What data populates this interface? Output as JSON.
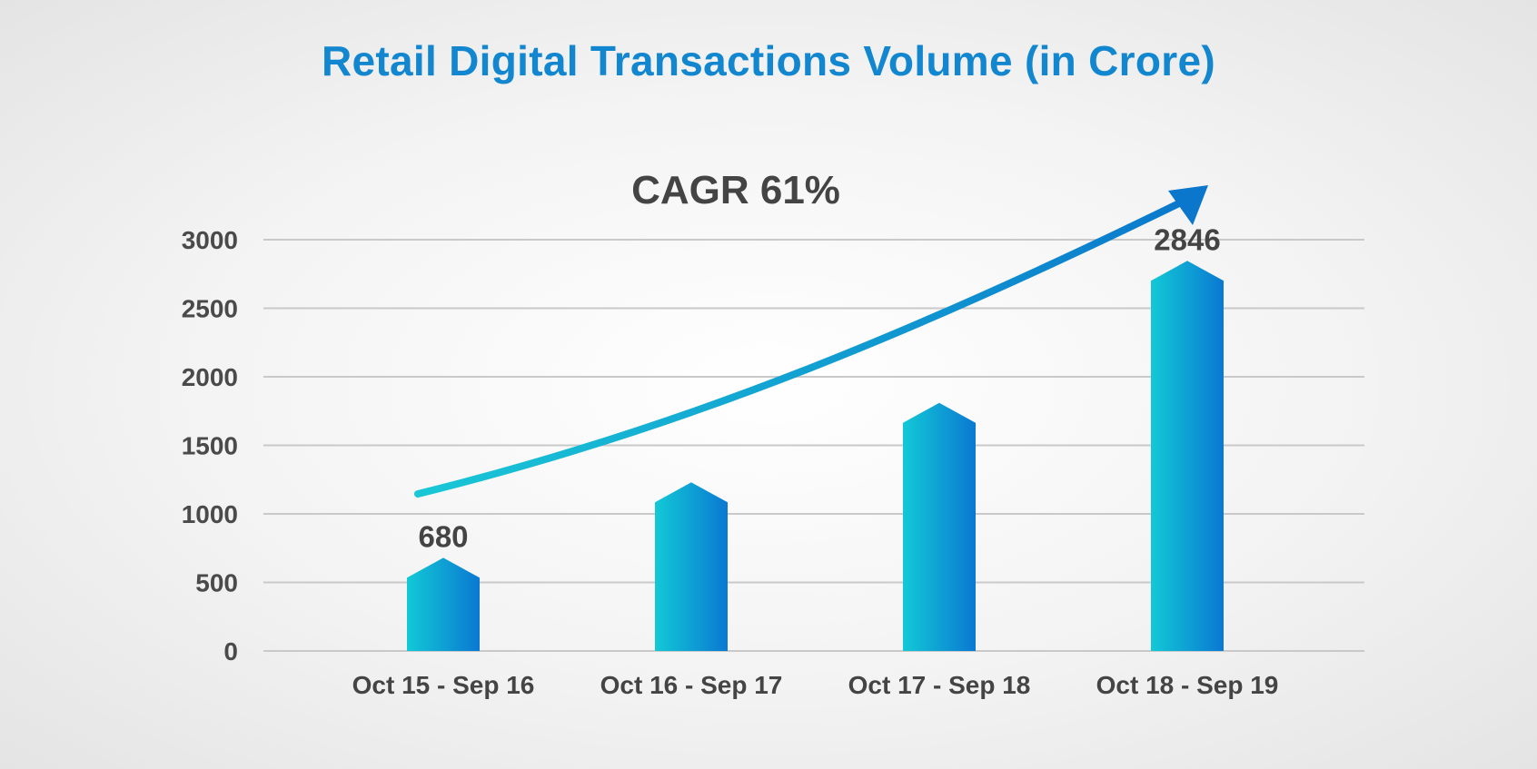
{
  "chart_data": {
    "type": "bar",
    "title": "Retail Digital Transactions Volume (in Crore)",
    "annotation": "CAGR 61%",
    "categories": [
      "Oct 15 - Sep 16",
      "Oct 16 - Sep 17",
      "Oct 17 - Sep 18",
      "Oct 18 - Sep 19"
    ],
    "values": [
      680,
      1230,
      1810,
      2846
    ],
    "data_labels": [
      "680",
      "",
      "",
      "2846"
    ],
    "yticks": [
      "0",
      "500",
      "1000",
      "1500",
      "2000",
      "2500",
      "3000"
    ],
    "ylim": [
      0,
      3000
    ],
    "grid": true,
    "trend_arrow": true,
    "colors": {
      "title": "#1287d0",
      "bar_light": "#12c9d6",
      "bar_dark": "#0a78d2",
      "arrow_start": "#19c7d6",
      "arrow_end": "#0a76cc",
      "grid": "#c9c9c9",
      "text": "#444444"
    }
  }
}
